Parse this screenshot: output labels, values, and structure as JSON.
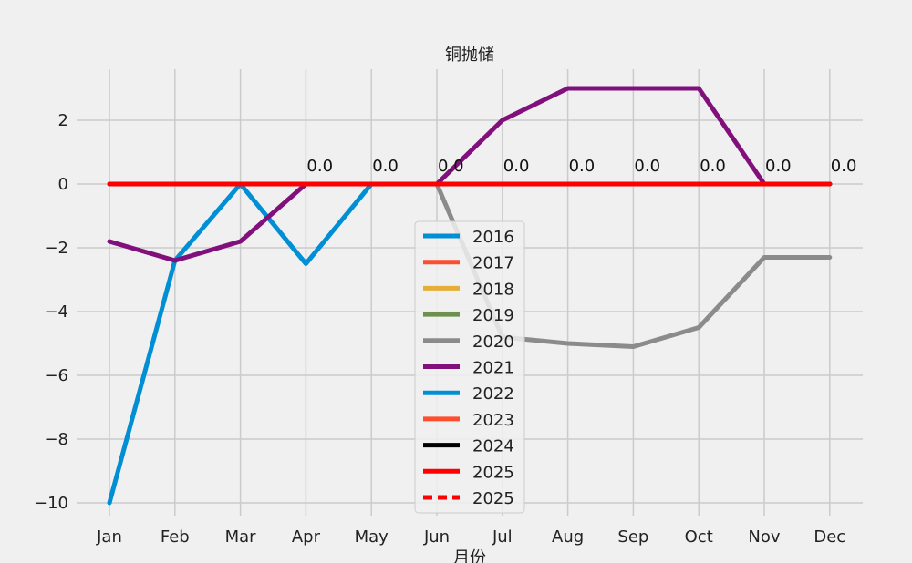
{
  "chart_data": {
    "type": "line",
    "title": "铜抛储",
    "xlabel": "月份",
    "ylabel": "",
    "categories": [
      "Jan",
      "Feb",
      "Mar",
      "Apr",
      "May",
      "Jun",
      "Jul",
      "Aug",
      "Sep",
      "Oct",
      "Nov",
      "Dec"
    ],
    "ylim": [
      -10.5,
      3.6
    ],
    "yticks": [
      2,
      0,
      -2,
      -4,
      -6,
      -8,
      -10
    ],
    "ytick_labels": [
      "2",
      "0",
      "−2",
      "−4",
      "−6",
      "−8",
      "−10"
    ],
    "grid": true,
    "legend_position": "center-bottom",
    "series": [
      {
        "name": "2016",
        "color": "#008fd5",
        "dash": false,
        "values": [
          -10,
          -2.4,
          0,
          -2.5,
          0,
          null,
          null,
          null,
          null,
          null,
          null,
          null
        ]
      },
      {
        "name": "2017",
        "color": "#fc4f30",
        "dash": false,
        "values": [
          0,
          0,
          0,
          0,
          0,
          0,
          0,
          0,
          0,
          0,
          0,
          0
        ]
      },
      {
        "name": "2018",
        "color": "#e5ae38",
        "dash": false,
        "values": [
          0,
          0,
          0,
          0,
          0,
          0,
          0,
          0,
          0,
          0,
          0,
          0
        ]
      },
      {
        "name": "2019",
        "color": "#6d904f",
        "dash": false,
        "values": [
          0,
          0,
          0,
          0,
          0,
          0,
          0,
          0,
          0,
          0,
          0,
          0
        ]
      },
      {
        "name": "2020",
        "color": "#8b8b8b",
        "dash": false,
        "values": [
          null,
          null,
          null,
          null,
          null,
          0,
          -4.8,
          -5.0,
          -5.1,
          -4.5,
          -2.3,
          -2.3
        ]
      },
      {
        "name": "2021",
        "color": "#810f7c",
        "dash": false,
        "values": [
          -1.8,
          -2.4,
          -1.8,
          0,
          0,
          0,
          2,
          3,
          3,
          3,
          0,
          0
        ]
      },
      {
        "name": "2022",
        "color": "#008fd5",
        "dash": false,
        "values": [
          0,
          0,
          0,
          0,
          0,
          0,
          0,
          0,
          0,
          0,
          0,
          0
        ]
      },
      {
        "name": "2023",
        "color": "#fc4f30",
        "dash": false,
        "values": [
          0,
          0,
          0,
          0,
          0,
          0,
          0,
          0,
          0,
          0,
          0,
          0
        ]
      },
      {
        "name": "2024",
        "color": "#000000",
        "dash": false,
        "values": [
          null,
          null,
          null,
          0,
          0,
          0,
          0,
          0,
          0,
          0,
          0,
          0
        ]
      },
      {
        "name": "2025",
        "color": "#ff0000",
        "dash": false,
        "values": [
          0,
          0,
          0,
          0,
          0,
          0,
          0,
          0,
          0,
          0,
          0,
          0
        ]
      },
      {
        "name": "2025",
        "color": "#ff0000",
        "dash": true,
        "values": [
          null,
          null,
          null,
          0,
          0,
          0,
          0,
          0,
          0,
          0,
          0,
          0
        ]
      }
    ],
    "data_labels": [
      {
        "category": "Apr",
        "value": 0,
        "text": "0.0"
      },
      {
        "category": "May",
        "value": 0,
        "text": "0.0"
      },
      {
        "category": "Jun",
        "value": 0,
        "text": "0.0"
      },
      {
        "category": "Jul",
        "value": 0,
        "text": "0.0"
      },
      {
        "category": "Aug",
        "value": 0,
        "text": "0.0"
      },
      {
        "category": "Sep",
        "value": 0,
        "text": "0.0"
      },
      {
        "category": "Oct",
        "value": 0,
        "text": "0.0"
      },
      {
        "category": "Nov",
        "value": 0,
        "text": "0.0"
      },
      {
        "category": "Dec",
        "value": 0,
        "text": "0.0"
      }
    ]
  }
}
